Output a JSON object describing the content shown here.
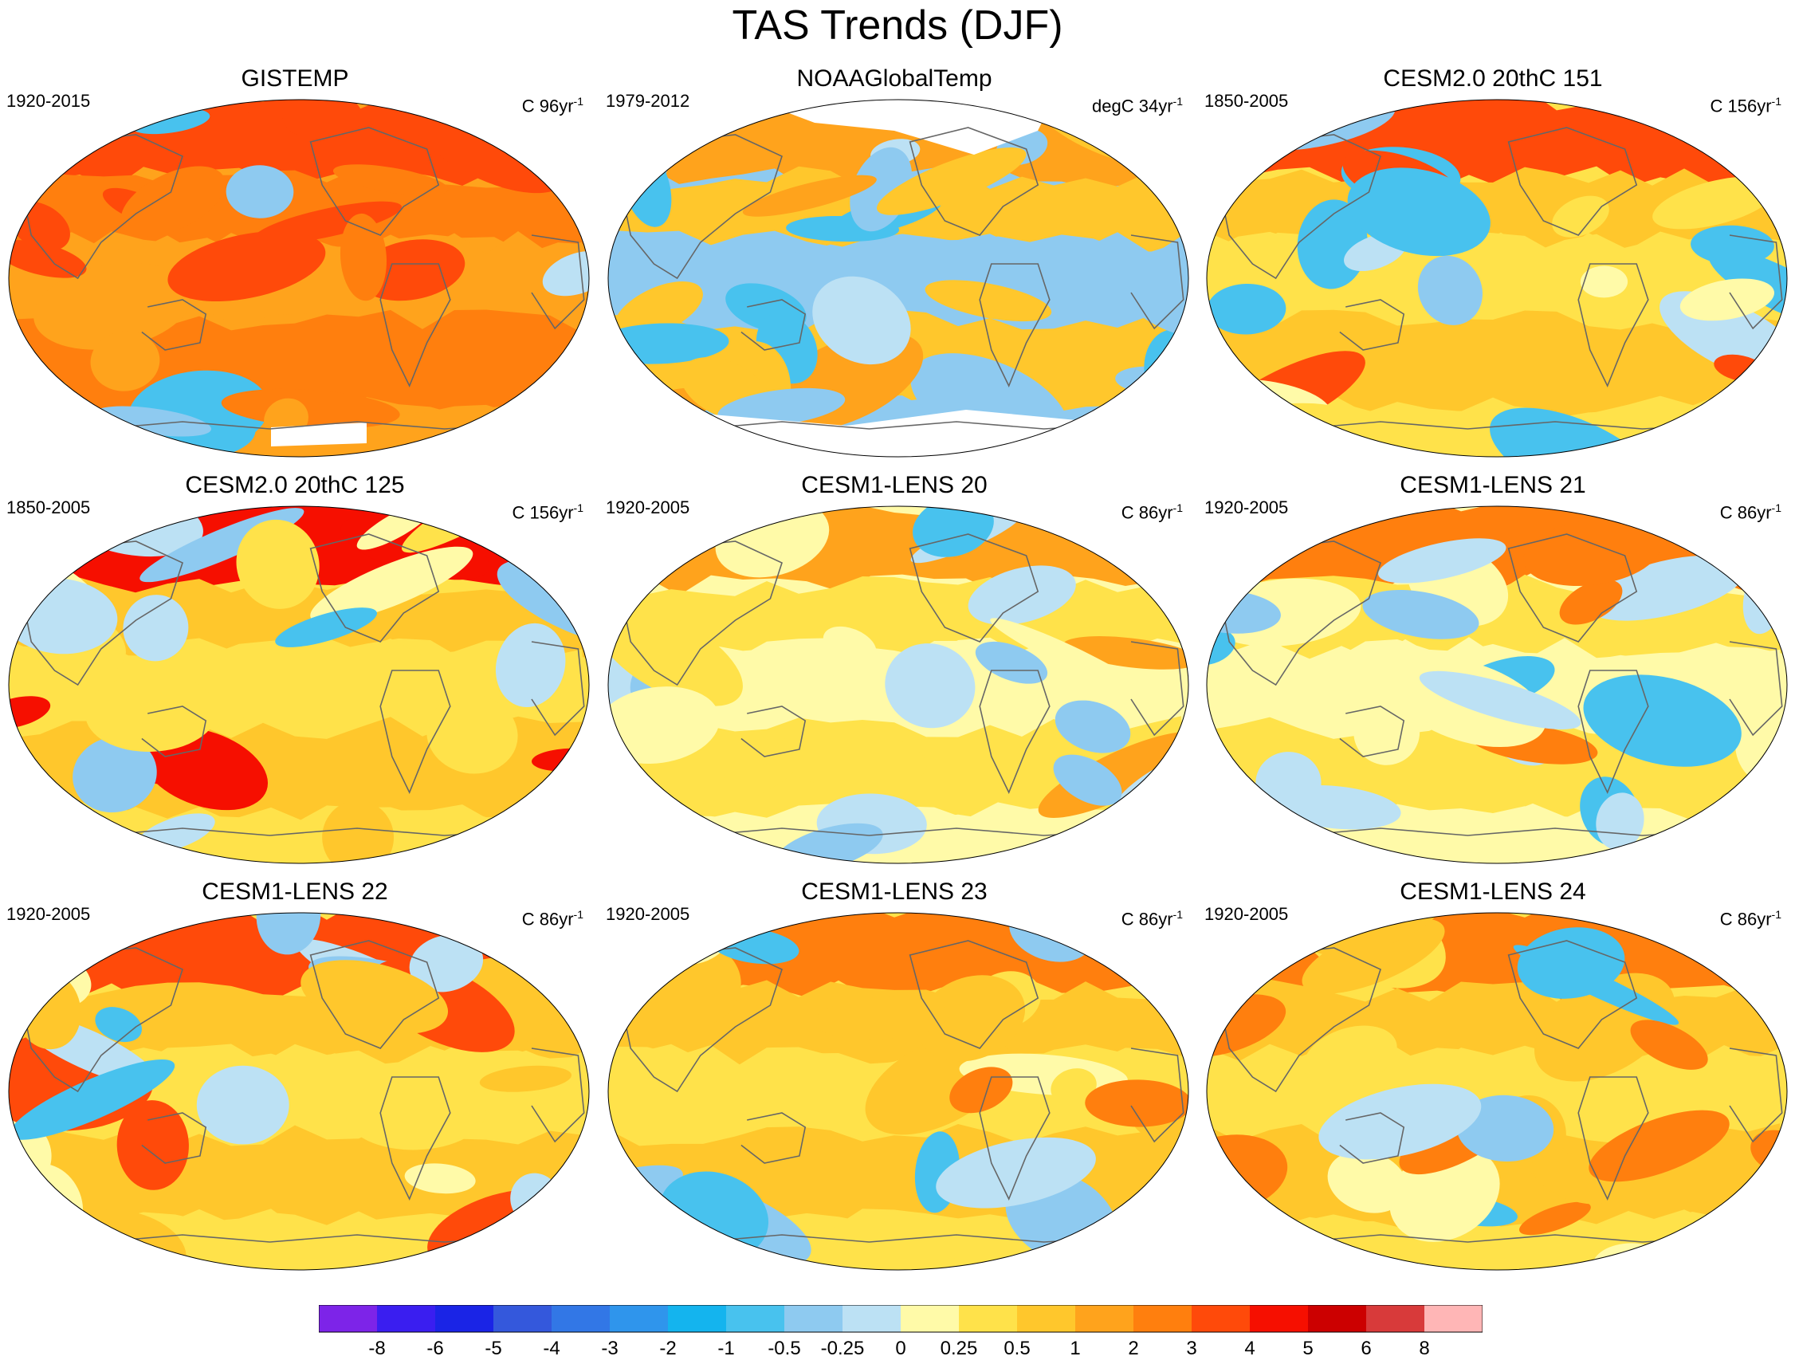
{
  "title": "TAS Trends (DJF)",
  "colors": {
    "coast": "#666666",
    "missing": "#ffffff"
  },
  "chart_data": {
    "type": "map-panels",
    "variable": "TAS",
    "season": "DJF",
    "colorbar": {
      "levels": [
        "-8",
        "-6",
        "-5",
        "-4",
        "-3",
        "-2",
        "-1",
        "-0.5",
        "-0.25",
        "0",
        "0.25",
        "0.5",
        "1",
        "2",
        "3",
        "4",
        "5",
        "6",
        "8"
      ],
      "colors": [
        "#7d24e8",
        "#3a1ef0",
        "#1a24e6",
        "#3458dc",
        "#3277e6",
        "#2f95ec",
        "#14b4ee",
        "#48c2ee",
        "#8ecaf0",
        "#bce1f4",
        "#fffaa8",
        "#ffe24a",
        "#ffc72c",
        "#ffa31c",
        "#ff7f0e",
        "#ff4a0a",
        "#f60f00",
        "#cc0000",
        "#d83a3a",
        "#ffb6b6"
      ]
    },
    "panels": [
      {
        "title": "GISTEMP",
        "period": "1920-2015",
        "units_prefix": "C 96yr",
        "units_exp": "-1",
        "class": [
          12,
          13,
          14,
          15
        ],
        "cool": 0.15,
        "missing": "antarctic"
      },
      {
        "title": "NOAAGlobalTemp",
        "period": "1979-2012",
        "units_prefix": "degC 34yr",
        "units_exp": "-1",
        "class": [
          7,
          8,
          12,
          13
        ],
        "cool": 0.55,
        "missing": "poles"
      },
      {
        "title": "CESM2.0 20thC 151",
        "period": "1850-2005",
        "units_prefix": "C 156yr",
        "units_exp": "-1",
        "class": [
          10,
          11,
          12,
          15
        ],
        "cool": 0.35,
        "missing": "none"
      },
      {
        "title": "CESM2.0 20thC 125",
        "period": "1850-2005",
        "units_prefix": "C 156yr",
        "units_exp": "-1",
        "class": [
          10,
          11,
          12,
          16
        ],
        "cool": 0.25,
        "missing": "none"
      },
      {
        "title": "CESM1-LENS 20",
        "period": "1920-2005",
        "units_prefix": "C 86yr",
        "units_exp": "-1",
        "class": [
          9,
          10,
          11,
          13
        ],
        "cool": 0.35,
        "missing": "none"
      },
      {
        "title": "CESM1-LENS 21",
        "period": "1920-2005",
        "units_prefix": "C 86yr",
        "units_exp": "-1",
        "class": [
          9,
          10,
          11,
          14
        ],
        "cool": 0.3,
        "missing": "none"
      },
      {
        "title": "CESM1-LENS 22",
        "period": "1920-2005",
        "units_prefix": "C 86yr",
        "units_exp": "-1",
        "class": [
          10,
          11,
          12,
          15
        ],
        "cool": 0.25,
        "missing": "none"
      },
      {
        "title": "CESM1-LENS 23",
        "period": "1920-2005",
        "units_prefix": "C 86yr",
        "units_exp": "-1",
        "class": [
          10,
          11,
          12,
          14
        ],
        "cool": 0.35,
        "missing": "none"
      },
      {
        "title": "CESM1-LENS 24",
        "period": "1920-2005",
        "units_prefix": "C 86yr",
        "units_exp": "-1",
        "class": [
          10,
          11,
          12,
          14
        ],
        "cool": 0.25,
        "missing": "none"
      }
    ]
  }
}
